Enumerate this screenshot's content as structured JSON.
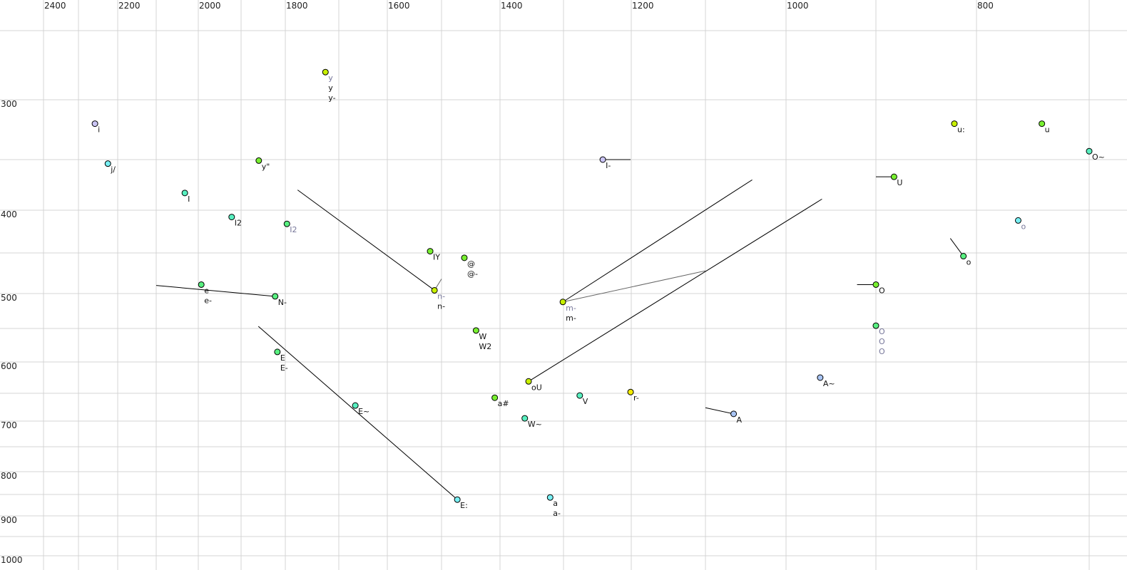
{
  "chart_data": {
    "type": "scatter",
    "title": "",
    "xlabel": "",
    "ylabel": "",
    "x_axis": {
      "reversed": true,
      "scale": "nonlinear (auditory)",
      "position": "top",
      "ticks_labeled": [
        2400,
        2200,
        2000,
        1800,
        1600,
        1400,
        1200,
        1000,
        800
      ],
      "grid_every": 100,
      "xlim": [
        2400,
        700
      ]
    },
    "y_axis": {
      "reversed": true,
      "scale": "nonlinear (auditory)",
      "position": "left",
      "ticks_labeled": [
        300,
        400,
        500,
        600,
        700,
        800,
        900,
        1000
      ],
      "grid_every": 50,
      "ylim": [
        250,
        1000
      ]
    },
    "grid": true,
    "colors": {
      "yellowgreen": "#c8f000",
      "yellow": "#f4ec00",
      "green": "#78f030",
      "mint": "#58f080",
      "teal": "#58f0c0",
      "cyan": "#78f0f4",
      "lavender": "#cac4f4",
      "blue": "#a8c4f4"
    },
    "points": [
      {
        "x": 1725,
        "y": 280,
        "color": "yellowgreen",
        "labels": [
          {
            "text": "y",
            "muted": true
          },
          {
            "text": "y"
          },
          {
            "text": "y-"
          }
        ]
      },
      {
        "x": 2258,
        "y": 320,
        "color": "lavender",
        "labels": [
          {
            "text": "i"
          }
        ]
      },
      {
        "x": 2225,
        "y": 354,
        "color": "cyan",
        "labels": [
          {
            "text": "j/"
          }
        ]
      },
      {
        "x": 2032,
        "y": 383,
        "color": "teal",
        "labels": [
          {
            "text": "I"
          }
        ]
      },
      {
        "x": 1922,
        "y": 408,
        "color": "teal",
        "labels": [
          {
            "text": "I2"
          }
        ]
      },
      {
        "x": 1797,
        "y": 416,
        "color": "mint",
        "labels": [
          {
            "text": "I2",
            "muted": true
          }
        ]
      },
      {
        "x": 1860,
        "y": 351,
        "color": "green",
        "labels": [
          {
            "text": "y\""
          }
        ]
      },
      {
        "x": 1993,
        "y": 489,
        "color": "mint",
        "labels": [
          {
            "text": "e"
          },
          {
            "text": "e-"
          }
        ]
      },
      {
        "x": 1823,
        "y": 504,
        "color": "mint",
        "labels": [
          {
            "text": "N-"
          }
        ]
      },
      {
        "x": 1521,
        "y": 448,
        "color": "green",
        "labels": [
          {
            "text": "IY"
          }
        ]
      },
      {
        "x": 1461,
        "y": 456,
        "color": "green",
        "labels": [
          {
            "text": "@"
          },
          {
            "text": "@-"
          }
        ]
      },
      {
        "x": 1513,
        "y": 496,
        "color": "yellowgreen",
        "labels": [
          {
            "text": "n-",
            "muted": true
          },
          {
            "text": "n-"
          }
        ]
      },
      {
        "x": 1301,
        "y": 512,
        "color": "yellowgreen",
        "labels": [
          {
            "text": "m-",
            "muted": true
          },
          {
            "text": "m-"
          }
        ]
      },
      {
        "x": 1441,
        "y": 553,
        "color": "green",
        "labels": [
          {
            "text": "W"
          },
          {
            "text": "W2"
          }
        ]
      },
      {
        "x": 1818,
        "y": 585,
        "color": "mint",
        "labels": [
          {
            "text": "E"
          },
          {
            "text": "E-"
          }
        ]
      },
      {
        "x": 1666,
        "y": 672,
        "color": "teal",
        "labels": [
          {
            "text": "E~"
          }
        ]
      },
      {
        "x": 1473,
        "y": 862,
        "color": "cyan",
        "labels": [
          {
            "text": "E:"
          }
        ]
      },
      {
        "x": 1355,
        "y": 631,
        "color": "yellowgreen",
        "labels": [
          {
            "text": "oU"
          }
        ]
      },
      {
        "x": 1409,
        "y": 658,
        "color": "green",
        "labels": [
          {
            "text": "a#"
          }
        ]
      },
      {
        "x": 1361,
        "y": 695,
        "color": "teal",
        "labels": [
          {
            "text": "W~"
          }
        ]
      },
      {
        "x": 1276,
        "y": 654,
        "color": "teal",
        "labels": [
          {
            "text": "V"
          }
        ]
      },
      {
        "x": 1201,
        "y": 648,
        "color": "yellow",
        "labels": [
          {
            "text": "r-"
          }
        ]
      },
      {
        "x": 1321,
        "y": 857,
        "color": "cyan",
        "labels": [
          {
            "text": "a"
          },
          {
            "text": "a-"
          }
        ]
      },
      {
        "x": 1065,
        "y": 687,
        "color": "blue",
        "labels": [
          {
            "text": "A"
          }
        ]
      },
      {
        "x": 962,
        "y": 625,
        "color": "blue",
        "labels": [
          {
            "text": "A~"
          }
        ]
      },
      {
        "x": 1242,
        "y": 350,
        "color": "lavender",
        "labels": [
          {
            "text": "I-"
          }
        ]
      },
      {
        "x": 882,
        "y": 367,
        "color": "green",
        "labels": [
          {
            "text": "U"
          }
        ]
      },
      {
        "x": 900,
        "y": 489,
        "color": "green",
        "labels": [
          {
            "text": "O"
          }
        ]
      },
      {
        "x": 900,
        "y": 546,
        "color": "mint",
        "labels": [
          {
            "text": "O",
            "muted": true
          },
          {
            "text": "O",
            "muted": true
          },
          {
            "text": "O",
            "muted": true
          }
        ]
      },
      {
        "x": 813,
        "y": 454,
        "color": "mint",
        "labels": [
          {
            "text": "o"
          }
        ]
      },
      {
        "x": 763,
        "y": 412,
        "color": "cyan",
        "labels": [
          {
            "text": "o",
            "muted": true
          }
        ]
      },
      {
        "x": 822,
        "y": 320,
        "color": "yellowgreen",
        "labels": [
          {
            "text": "u:"
          }
        ]
      },
      {
        "x": 742,
        "y": 320,
        "color": "green",
        "labels": [
          {
            "text": "u"
          }
        ]
      },
      {
        "x": 700,
        "y": 343,
        "color": "teal",
        "labels": [
          {
            "text": "O~"
          }
        ]
      }
    ],
    "segments": [
      {
        "from": [
          2100,
          490
        ],
        "to": [
          1823,
          504
        ]
      },
      {
        "from": [
          1777,
          380
        ],
        "to": [
          1513,
          496
        ]
      },
      {
        "from": [
          1513,
          496
        ],
        "to": [
          1500,
          482
        ],
        "muted": true
      },
      {
        "from": [
          1301,
          512
        ],
        "to": [
          1042,
          370
        ]
      },
      {
        "from": [
          1301,
          512
        ],
        "to": [
          1100,
          472
        ],
        "muted": true
      },
      {
        "from": [
          1355,
          631
        ],
        "to": [
          960,
          389
        ]
      },
      {
        "from": [
          1861,
          547
        ],
        "to": [
          1473,
          862
        ]
      },
      {
        "from": [
          1242,
          350
        ],
        "to": [
          1201,
          350
        ]
      },
      {
        "from": [
          900,
          367
        ],
        "to": [
          882,
          367
        ]
      },
      {
        "from": [
          921,
          489
        ],
        "to": [
          900,
          489
        ]
      },
      {
        "from": [
          826,
          433
        ],
        "to": [
          813,
          454
        ]
      },
      {
        "from": [
          1100,
          676
        ],
        "to": [
          1065,
          687
        ]
      }
    ]
  }
}
